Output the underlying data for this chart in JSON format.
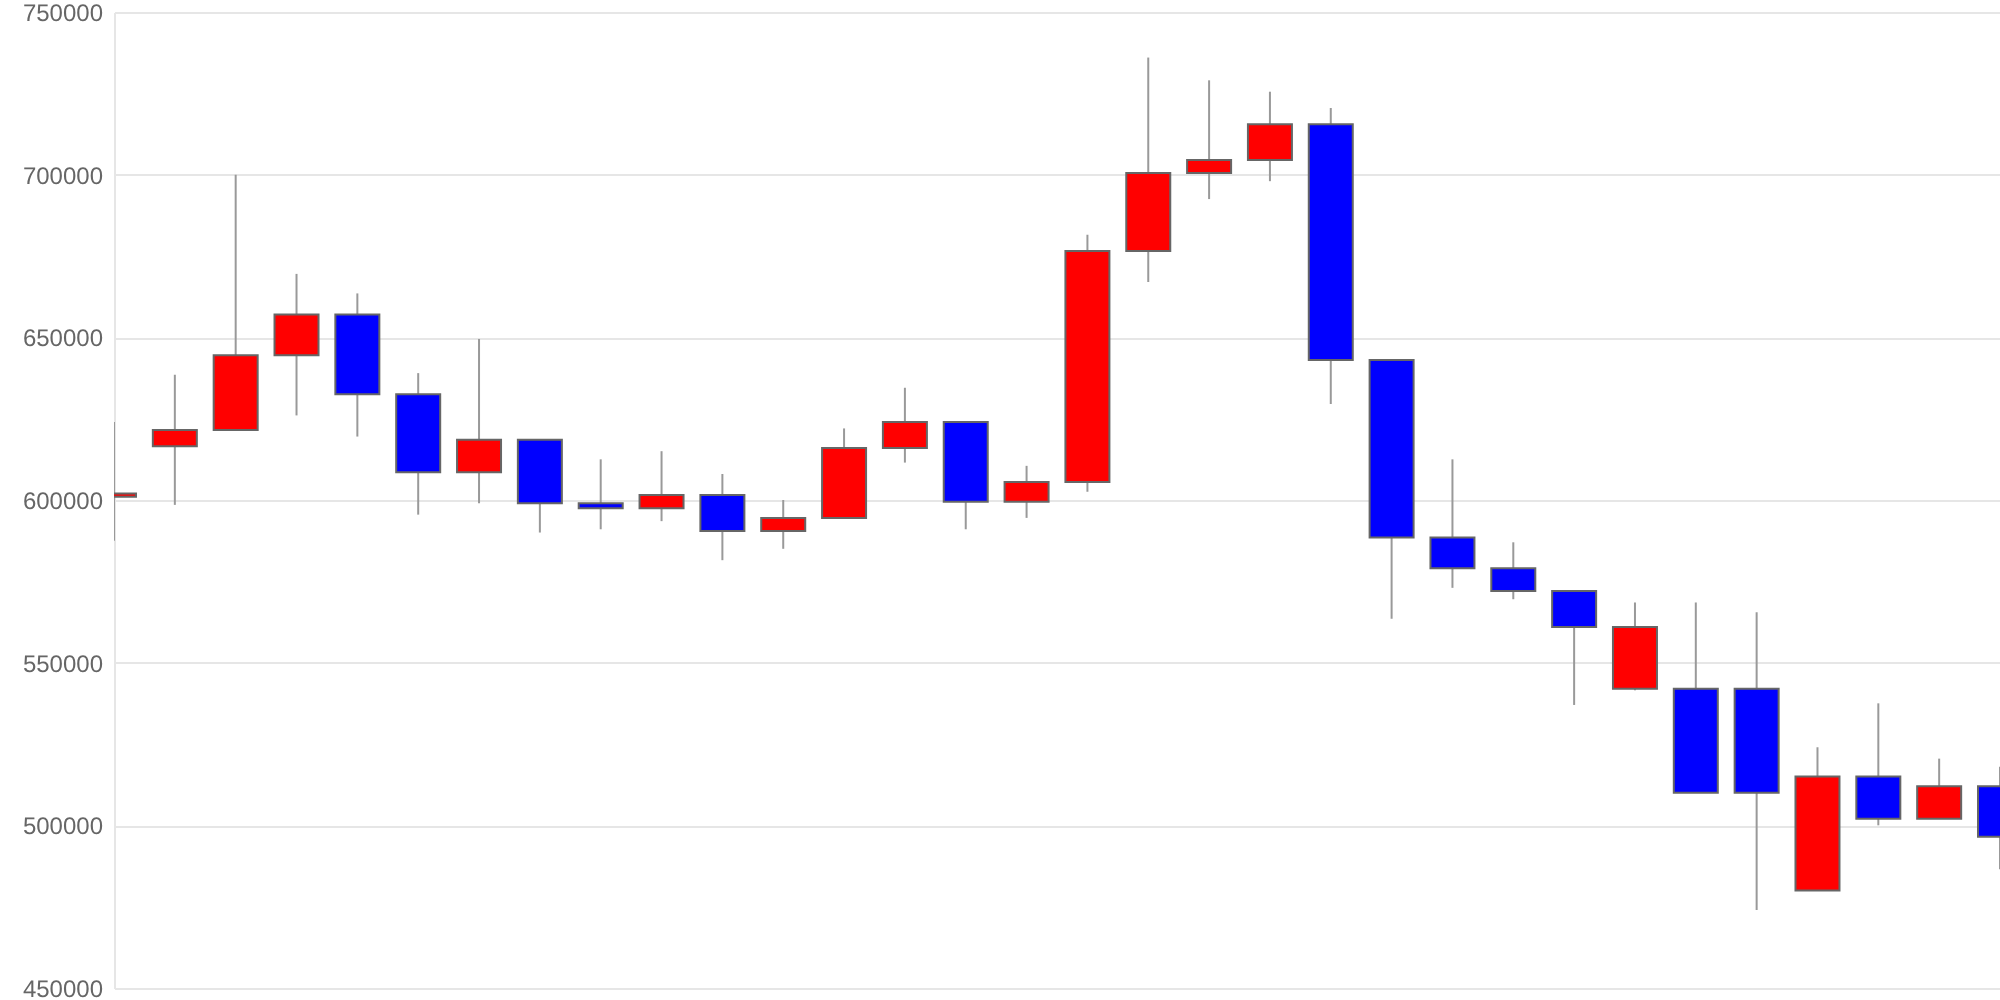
{
  "chart_data": {
    "type": "candlestick",
    "categories": [
      null,
      null,
      null,
      null,
      null,
      null,
      null,
      null,
      null,
      null,
      null,
      null,
      null,
      null,
      null,
      null,
      null,
      null,
      null,
      null,
      null,
      null,
      null,
      null,
      null,
      null,
      null,
      null,
      null,
      null,
      null,
      null
    ],
    "ohlc": [
      [
        601000,
        624000,
        587500,
        602000
      ],
      [
        616500,
        638500,
        598500,
        621500
      ],
      [
        621500,
        700000,
        621500,
        644500
      ],
      [
        644500,
        669500,
        626000,
        657000
      ],
      [
        657000,
        663500,
        619500,
        632500
      ],
      [
        632500,
        639000,
        595500,
        608500
      ],
      [
        608500,
        649500,
        599000,
        618500
      ],
      [
        618500,
        618500,
        590000,
        599000
      ],
      [
        599000,
        612500,
        591000,
        597500
      ],
      [
        597500,
        615000,
        593500,
        601500
      ],
      [
        601500,
        608000,
        581500,
        590500
      ],
      [
        590500,
        600000,
        585000,
        594500
      ],
      [
        594500,
        622000,
        594500,
        616000
      ],
      [
        616000,
        634500,
        611500,
        624000
      ],
      [
        624000,
        624000,
        591000,
        599500
      ],
      [
        599500,
        610500,
        594500,
        605500
      ],
      [
        605500,
        681500,
        602500,
        676500
      ],
      [
        676500,
        736000,
        667000,
        700500
      ],
      [
        700500,
        729000,
        692500,
        704500
      ],
      [
        704500,
        725500,
        698000,
        715500
      ],
      [
        715500,
        720500,
        629500,
        643000
      ],
      [
        643000,
        643000,
        563500,
        588500
      ],
      [
        588500,
        612500,
        573000,
        579000
      ],
      [
        579000,
        587000,
        569500,
        572000
      ],
      [
        572000,
        572000,
        537000,
        561000
      ],
      [
        542000,
        568500,
        541500,
        561000
      ],
      [
        542000,
        568500,
        510000,
        510000
      ],
      [
        542000,
        565500,
        474000,
        510000
      ],
      [
        480000,
        524000,
        480000,
        515000
      ],
      [
        515000,
        537500,
        500000,
        502000
      ],
      [
        502000,
        520500,
        502000,
        512000
      ],
      [
        512000,
        518000,
        486500,
        496500
      ]
    ],
    "colors": [
      "#ff0000",
      "#ff0000",
      "#ff0000",
      "#ff0000",
      "#0000ff",
      "#0000ff",
      "#ff0000",
      "#0000ff",
      "#0000ff",
      "#ff0000",
      "#0000ff",
      "#ff0000",
      "#ff0000",
      "#ff0000",
      "#0000ff",
      "#ff0000",
      "#ff0000",
      "#ff0000",
      "#ff0000",
      "#ff0000",
      "#0000ff",
      "#0000ff",
      "#0000ff",
      "#0000ff",
      "#0000ff",
      "#ff0000",
      "#0000ff",
      "#0000ff",
      "#ff0000",
      "#0000ff",
      "#ff0000",
      "#0000ff"
    ],
    "ylim": [
      450000,
      750000
    ],
    "yticks": [
      450000,
      500000,
      550000,
      600000,
      650000,
      700000,
      750000
    ],
    "grid": "y",
    "tick_labels": "y"
  }
}
